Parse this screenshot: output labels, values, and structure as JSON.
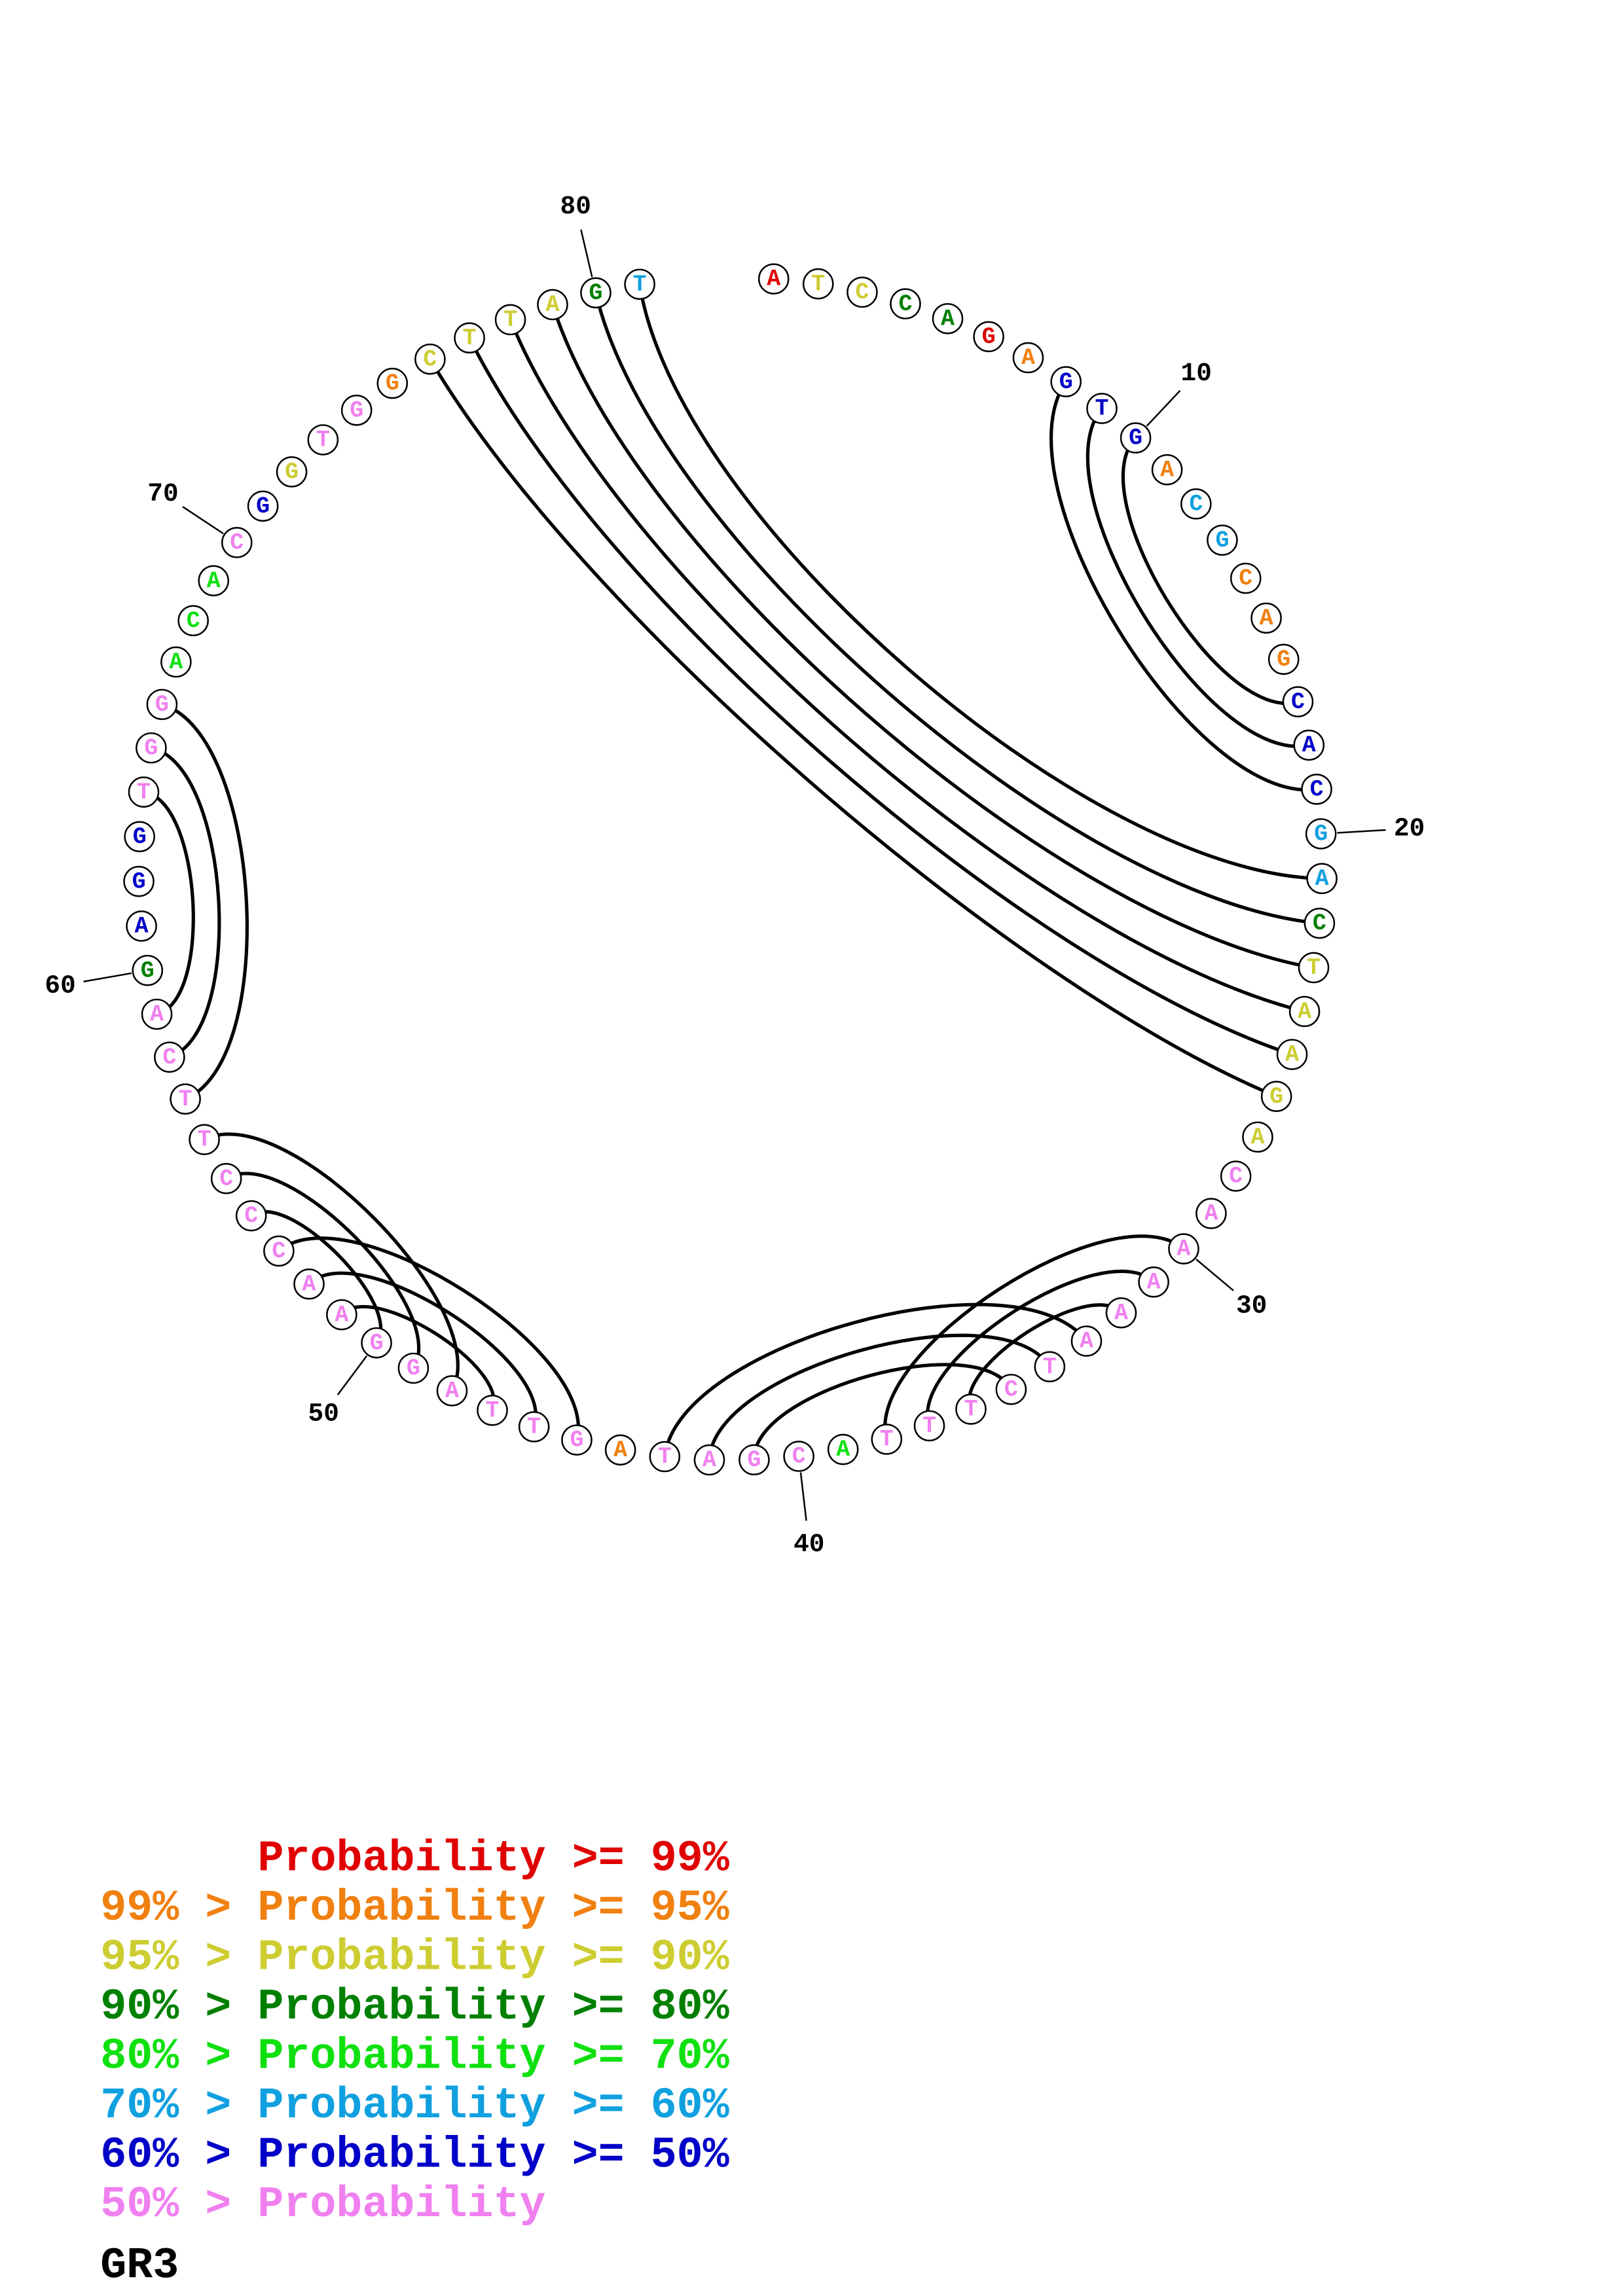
{
  "title": "GR3",
  "legend": [
    {
      "label": "Probability >= 99%",
      "color": "#e00000"
    },
    {
      "label": "99% > Probability >= 95%",
      "color": "#f08010"
    },
    {
      "label": "95% > Probability >= 90%",
      "color": "#cdcd32"
    },
    {
      "label": "90% > Probability >= 80%",
      "color": "#008000"
    },
    {
      "label": "80% > Probability >= 70%",
      "color": "#10e010"
    },
    {
      "label": "70% > Probability >= 60%",
      "color": "#10a0e0"
    },
    {
      "label": "60% > Probability >= 50%",
      "color": "#0000c8"
    },
    {
      "label": "50% > Probability",
      "color": "#f080f0"
    }
  ],
  "diagram": {
    "sequence": [
      "A",
      "T",
      "C",
      "C",
      "A",
      "G",
      "A",
      "G",
      "T",
      "G",
      "A",
      "C",
      "G",
      "C",
      "A",
      "G",
      "C",
      "A",
      "C",
      "G",
      "A",
      "C",
      "T",
      "A",
      "A",
      "G",
      "A",
      "C",
      "A",
      "A",
      "A",
      "A",
      "A",
      "T",
      "C",
      "T",
      "T",
      "T",
      "A",
      "C",
      "G",
      "A",
      "T",
      "A",
      "G",
      "T",
      "T",
      "A",
      "G",
      "G",
      "A",
      "A",
      "C",
      "C",
      "C",
      "T",
      "T",
      "C",
      "A",
      "G",
      "A",
      "G",
      "G",
      "T",
      "G",
      "G",
      "A",
      "C",
      "A",
      "C",
      "G",
      "G",
      "T",
      "G",
      "G",
      "C",
      "T",
      "T",
      "A",
      "G",
      "T"
    ],
    "probability_class": [
      0,
      2,
      2,
      3,
      3,
      0,
      1,
      6,
      6,
      6,
      1,
      5,
      5,
      1,
      1,
      1,
      6,
      6,
      6,
      5,
      5,
      3,
      2,
      2,
      2,
      2,
      2,
      7,
      7,
      7,
      7,
      7,
      7,
      7,
      7,
      7,
      7,
      7,
      4,
      7,
      7,
      7,
      7,
      1,
      7,
      7,
      7,
      7,
      7,
      7,
      7,
      7,
      7,
      7,
      7,
      7,
      7,
      7,
      7,
      3,
      6,
      6,
      6,
      7,
      7,
      7,
      4,
      4,
      4,
      7,
      6,
      2,
      7,
      7,
      1,
      2,
      2,
      2,
      2,
      3,
      5
    ],
    "pairs": [
      [
        8,
        19
      ],
      [
        9,
        18
      ],
      [
        10,
        17
      ],
      [
        76,
        26
      ],
      [
        77,
        25
      ],
      [
        78,
        24
      ],
      [
        79,
        23
      ],
      [
        80,
        22
      ],
      [
        81,
        21
      ],
      [
        30,
        38
      ],
      [
        31,
        37
      ],
      [
        32,
        36
      ],
      [
        33,
        43
      ],
      [
        34,
        42
      ],
      [
        35,
        41
      ],
      [
        53,
        45
      ],
      [
        52,
        46
      ],
      [
        51,
        47
      ],
      [
        56,
        48
      ],
      [
        55,
        49
      ],
      [
        54,
        50
      ],
      [
        66,
        57
      ],
      [
        65,
        58
      ],
      [
        64,
        59
      ]
    ],
    "position_labels": [
      10,
      20,
      30,
      40,
      50,
      60,
      70,
      80
    ],
    "pair_line_color": "#000000"
  }
}
